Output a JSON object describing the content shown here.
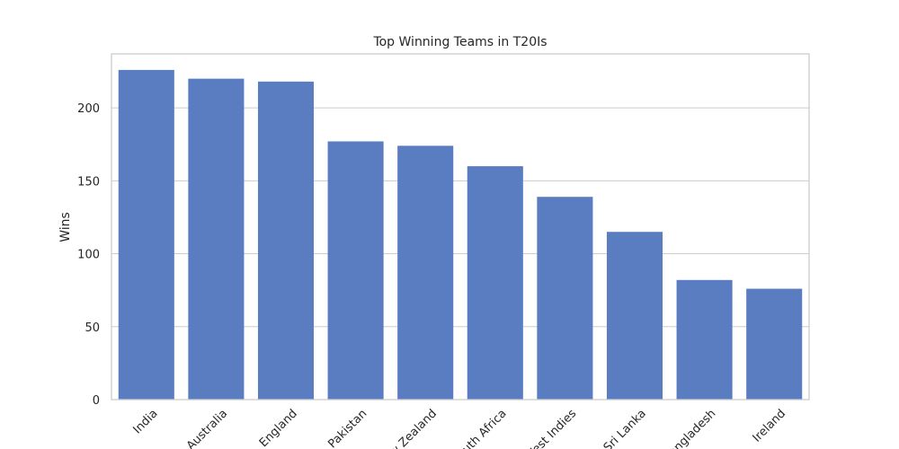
{
  "chart_data": {
    "type": "bar",
    "title": "Top Winning Teams in T20Is",
    "xlabel": "",
    "ylabel": "Wins",
    "categories": [
      "India",
      "Australia",
      "England",
      "Pakistan",
      "New Zealand",
      "South Africa",
      "West Indies",
      "Sri Lanka",
      "Bangladesh",
      "Ireland"
    ],
    "values": [
      226,
      220,
      218,
      177,
      174,
      160,
      139,
      115,
      82,
      76
    ],
    "ylim": [
      0,
      237
    ],
    "yticks": [
      0,
      50,
      100,
      150,
      200
    ],
    "grid": "horizontal",
    "legend": "none",
    "colors": {
      "bar": "#5a7dc1",
      "grid": "#cccccc",
      "text": "#262626"
    }
  }
}
